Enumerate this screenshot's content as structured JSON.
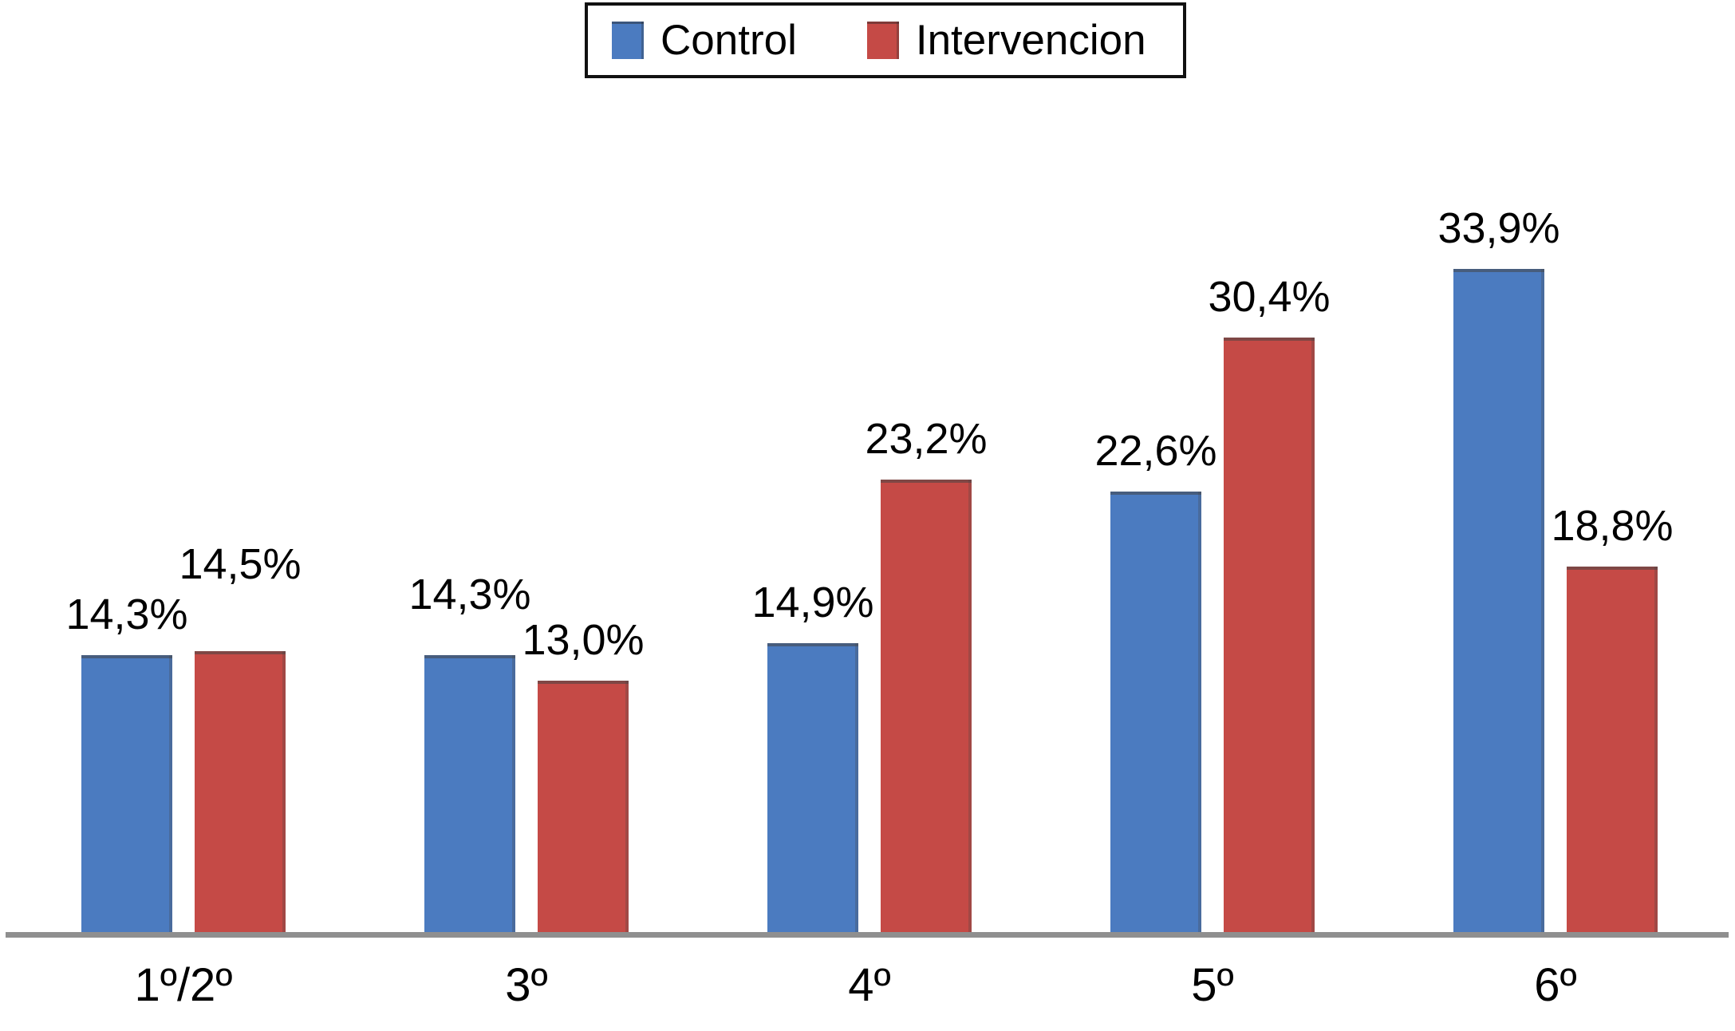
{
  "chart_data": {
    "type": "bar",
    "title": "",
    "categories": [
      "1º/2º",
      "3º",
      "4º",
      "5º",
      "6º"
    ],
    "series": [
      {
        "name": "Control",
        "color": "#4b7bc0",
        "values": [
          14.3,
          14.3,
          14.9,
          22.6,
          33.9
        ],
        "labels": [
          "14,3%",
          "14,3%",
          "14,9%",
          "22,6%",
          "33,9%"
        ],
        "label_raise": [
          0,
          25,
          0,
          0,
          0
        ]
      },
      {
        "name": "Intervencion",
        "color": "#c54a46",
        "values": [
          14.5,
          13.0,
          23.2,
          30.4,
          18.8
        ],
        "labels": [
          "14,5%",
          "13,0%",
          "23,2%",
          "30,4%",
          "18,8%"
        ],
        "label_raise": [
          58,
          0,
          0,
          0,
          0
        ]
      }
    ],
    "ylim": [
      0,
      35
    ],
    "y_axis_visible": false,
    "x_axis_visible": true,
    "grid": false,
    "legend_position": "top-center",
    "axis_color": "#8f8f8f",
    "label_color": "#000000",
    "background": "#ffffff"
  }
}
